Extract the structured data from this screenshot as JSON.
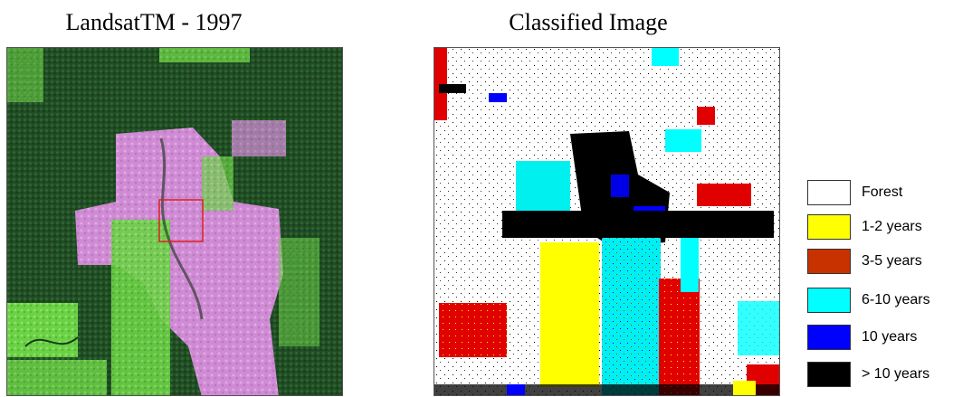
{
  "titles": {
    "left": "LandsatTM - 1997",
    "right": "Classified Image"
  },
  "legend": [
    {
      "label": "Forest",
      "color": "#ffffff"
    },
    {
      "label": "1-2 years",
      "color": "#ffff00"
    },
    {
      "label": "3-5 years",
      "color": "#c83200"
    },
    {
      "label": "6-10 years",
      "color": "#00ffff"
    },
    {
      "label": "10 years",
      "color": "#0000ff"
    },
    {
      "label": "> 10 years",
      "color": "#000000"
    }
  ],
  "colors": {
    "forest_green": "#1f4a23",
    "regrowth_lightgreen": "#6fd64a",
    "cleared_magenta": "#d58fd8",
    "red_box": "#e02020"
  }
}
